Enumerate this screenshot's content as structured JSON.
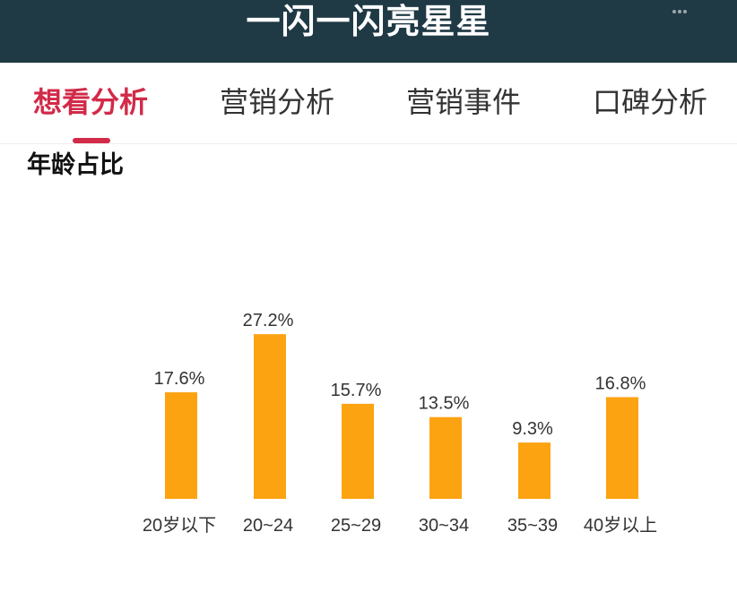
{
  "header": {
    "title": "一闪一闪亮星星"
  },
  "tabs": [
    {
      "label": "想看分析",
      "active": true
    },
    {
      "label": "营销分析",
      "active": false
    },
    {
      "label": "营销事件",
      "active": false
    },
    {
      "label": "口碑分析",
      "active": false
    }
  ],
  "colors": {
    "accent": "#d22a48",
    "header_bg": "#1f3a45",
    "bar": "#fca312"
  },
  "section": {
    "title": "年龄占比"
  },
  "chart_data": {
    "type": "bar",
    "categories": [
      "20岁以下",
      "20~24",
      "25~29",
      "30~34",
      "35~39",
      "40岁以上"
    ],
    "values": [
      17.6,
      27.2,
      15.7,
      13.5,
      9.3,
      16.8
    ],
    "value_labels": [
      "17.6%",
      "27.2%",
      "15.7%",
      "13.5%",
      "9.3%",
      "16.8%"
    ],
    "unit": "%",
    "grid": false,
    "legend": "none"
  }
}
